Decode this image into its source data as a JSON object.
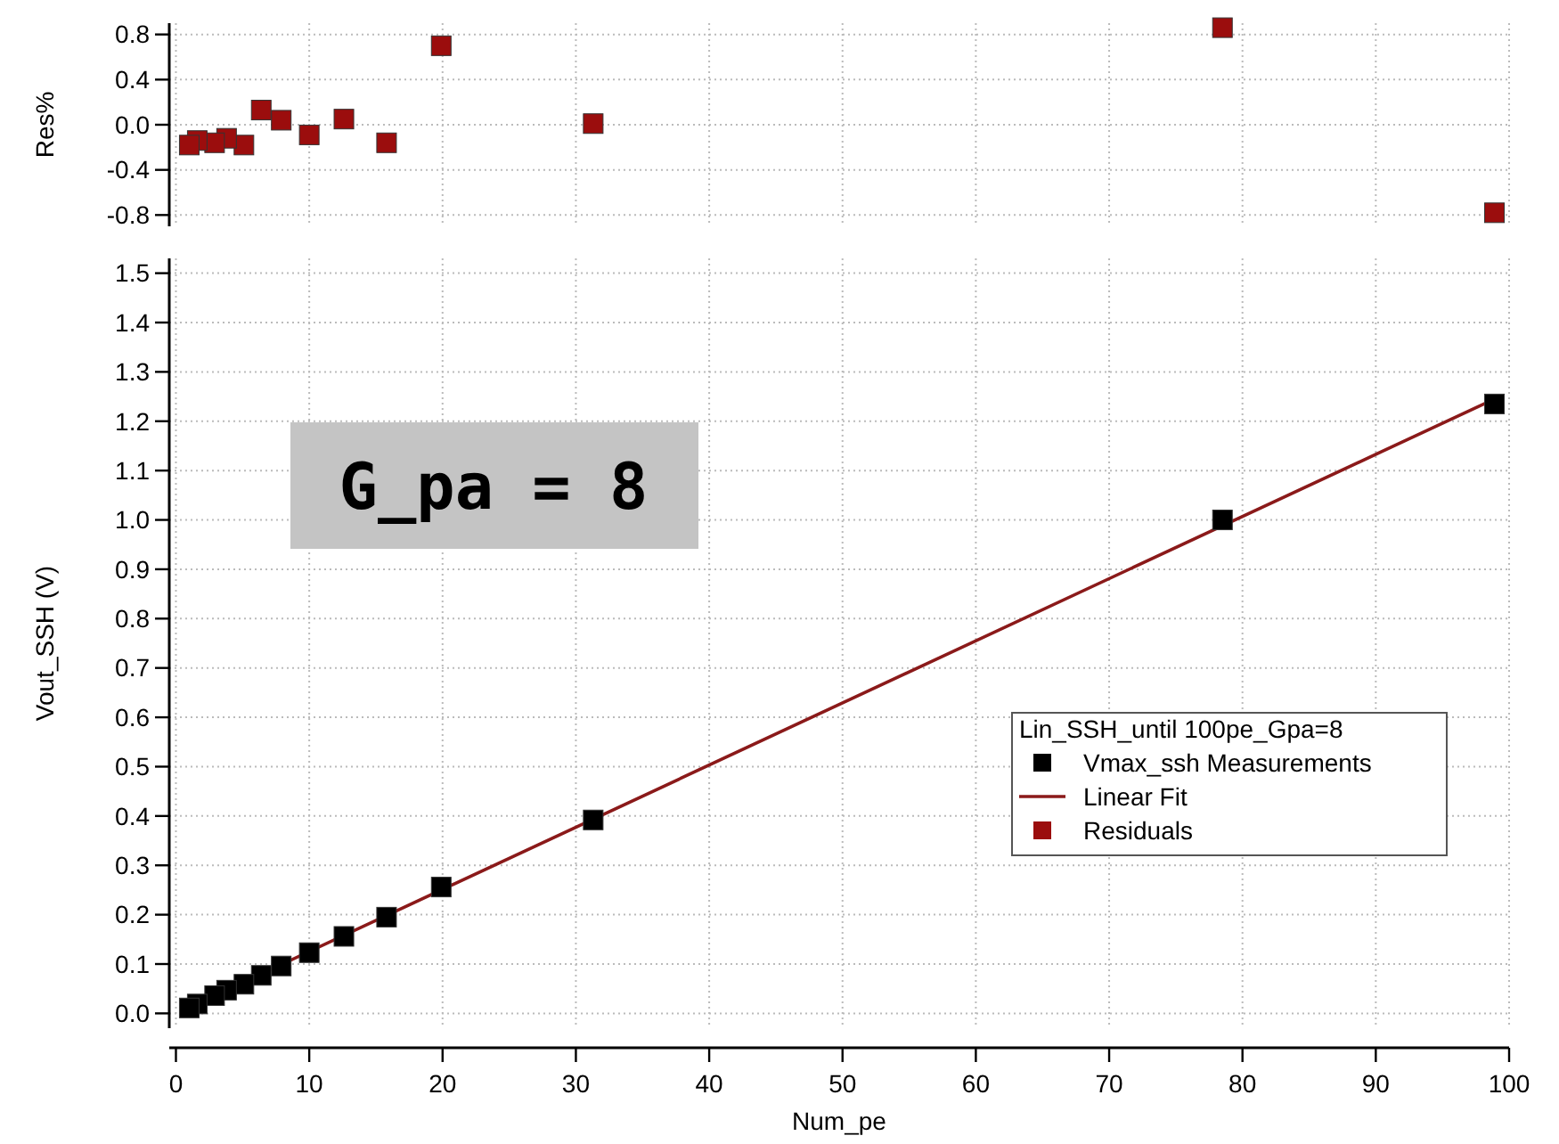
{
  "chart_data": [
    {
      "type": "scatter",
      "ylabel": "Res%",
      "xlim": [
        -0.5,
        100
      ],
      "ylim": [
        -0.9,
        0.9
      ],
      "xticks": [
        0,
        10,
        20,
        30,
        40,
        50,
        60,
        70,
        80,
        90,
        100
      ],
      "yticks": [
        {
          "value": -0.8,
          "label": "-0.8"
        },
        {
          "value": -0.4,
          "label": "-0.4"
        },
        {
          "value": 0,
          "label": "0.0"
        },
        {
          "value": 0.4,
          "label": "0.4"
        },
        {
          "value": 0.8,
          "label": "0.8"
        }
      ],
      "tick_labels": "y",
      "grid": true,
      "marker": "square",
      "series": [
        {
          "name": "Residuals",
          "color": "#9b0d0d",
          "x": [
            1.0,
            1.6,
            2.9,
            3.8,
            5.1,
            6.4,
            7.9,
            10.0,
            12.6,
            15.8,
            19.9,
            31.3,
            78.5,
            98.9
          ],
          "values": [
            -0.18,
            -0.14,
            -0.16,
            -0.12,
            -0.18,
            0.13,
            0.04,
            -0.09,
            0.05,
            -0.16,
            0.7,
            0.01,
            0.86,
            -0.78
          ]
        }
      ]
    },
    {
      "type": "scatter",
      "xlabel": "Num_pe",
      "ylabel": "Vout_SSH (V)",
      "legend_title": "Lin_SSH_until 100pe_Gpa=8",
      "legend": "right",
      "xlim": [
        -0.5,
        100
      ],
      "ylim": [
        -0.03,
        1.53
      ],
      "xticks": [
        0,
        10,
        20,
        30,
        40,
        50,
        60,
        70,
        80,
        90,
        100
      ],
      "yticks": [
        {
          "value": 0,
          "label": "0.0"
        },
        {
          "value": 0.1,
          "label": "0.1"
        },
        {
          "value": 0.2,
          "label": "0.2"
        },
        {
          "value": 0.3,
          "label": "0.3"
        },
        {
          "value": 0.4,
          "label": "0.4"
        },
        {
          "value": 0.5,
          "label": "0.5"
        },
        {
          "value": 0.6,
          "label": "0.6"
        },
        {
          "value": 0.7,
          "label": "0.7"
        },
        {
          "value": 0.8,
          "label": "0.8"
        },
        {
          "value": 0.9,
          "label": "0.9"
        },
        {
          "value": 1.0,
          "label": "1.0"
        },
        {
          "value": 1.1,
          "label": "1.1"
        },
        {
          "value": 1.2,
          "label": "1.2"
        },
        {
          "value": 1.3,
          "label": "1.3"
        },
        {
          "value": 1.4,
          "label": "1.4"
        },
        {
          "value": 1.5,
          "label": "1.5"
        }
      ],
      "grid": true,
      "marker": "square",
      "annotations": [
        "G_pa = 8"
      ],
      "series": [
        {
          "name": "Vmax_ssh Measurements",
          "color": "#000000",
          "x": [
            1.0,
            1.6,
            2.9,
            3.8,
            5.1,
            6.4,
            7.9,
            10.0,
            12.6,
            15.8,
            19.9,
            31.3,
            78.5,
            98.9
          ],
          "values": [
            0.011,
            0.019,
            0.036,
            0.047,
            0.059,
            0.077,
            0.096,
            0.123,
            0.156,
            0.195,
            0.256,
            0.392,
            1.0,
            1.235
          ]
        },
        {
          "name": "Linear Fit",
          "type": "line",
          "marker": "none",
          "color": "#8b1a1a",
          "x": [
            1.0,
            98.9
          ],
          "values": [
            0.012,
            1.245
          ]
        }
      ]
    }
  ]
}
